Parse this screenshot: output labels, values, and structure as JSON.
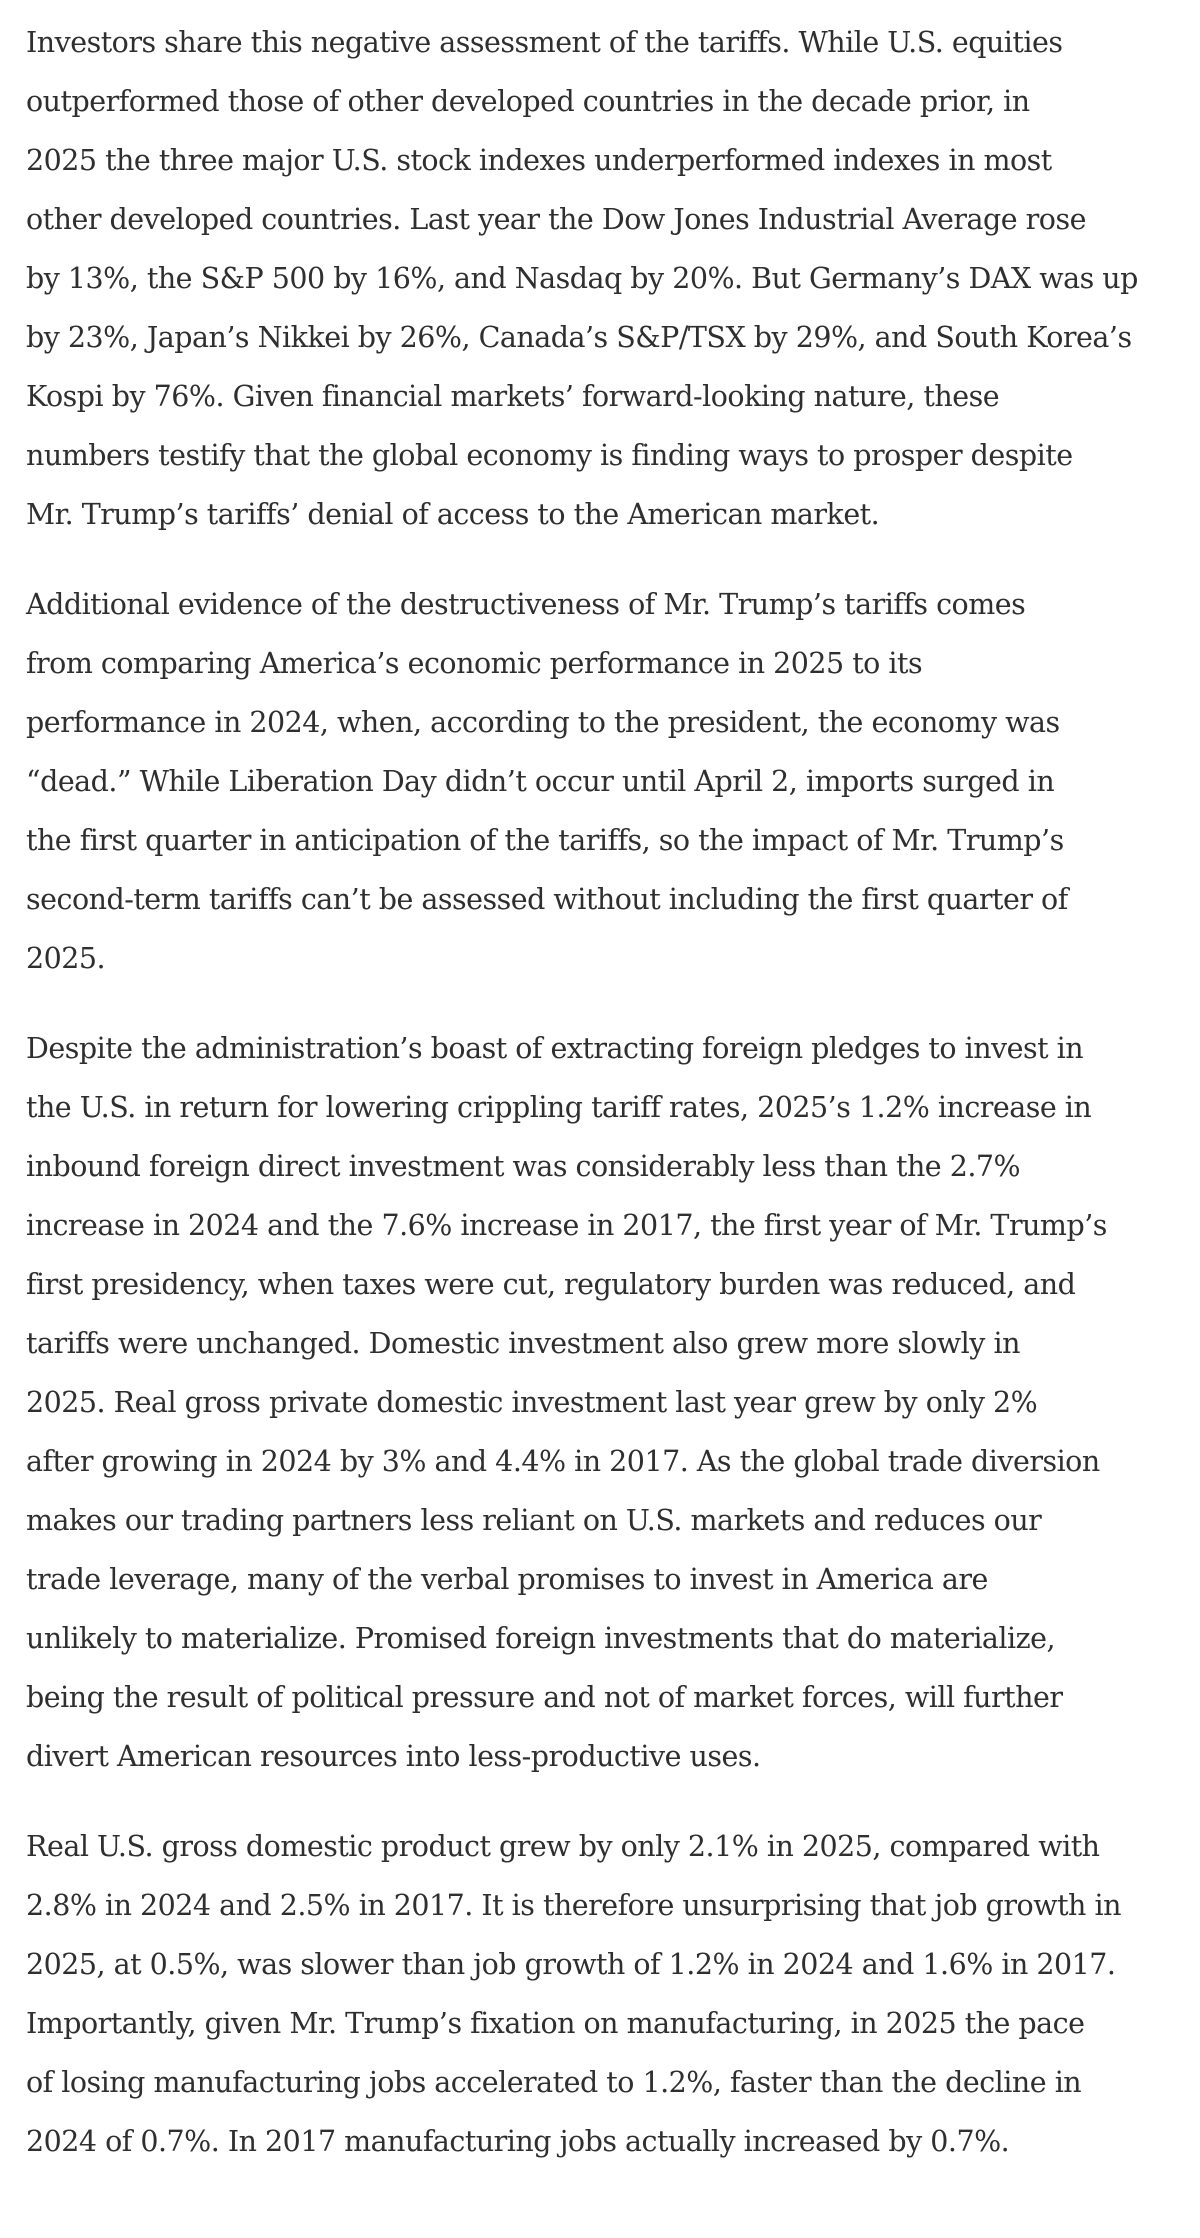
{
  "article": {
    "paragraphs": [
      {
        "lines": [
          "Investors share this negative assessment of the tariffs. While U.S. equities",
          "outperformed those of other developed countries in the decade prior, in",
          "2025 the three major U.S. stock indexes underperformed indexes in most",
          "other developed countries. Last year the Dow Jones Industrial Average rose",
          "by 13%, the S&P 500 by 16%, and Nasdaq by 20%. But Germany’s DAX was up",
          "by 23%, Japan’s Nikkei by 26%, Canada’s S&P/TSX by 29%, and South Korea’s",
          "Kospi by 76%. Given financial markets’ forward-looking nature, these",
          "numbers testify that the global economy is finding ways to prosper despite",
          "Mr. Trump’s tariffs’ denial of access to the American market."
        ]
      },
      {
        "lines": [
          "Additional evidence of the destructiveness of Mr. Trump’s tariffs comes",
          "from comparing America’s economic performance in 2025 to its",
          "performance in 2024, when, according to the president, the economy was",
          "“dead.” While Liberation Day didn’t occur until April 2, imports surged in",
          "the first quarter in anticipation of the tariffs, so the impact of Mr. Trump’s",
          "second-term tariffs can’t be assessed without including the first quarter of",
          "2025."
        ]
      },
      {
        "lines": [
          "Despite the administration’s boast of extracting foreign pledges to invest in",
          "the U.S. in return for lowering crippling tariff rates, 2025’s 1.2% increase in",
          "inbound foreign direct investment was considerably less than the 2.7%",
          "increase in 2024 and the 7.6% increase in 2017, the first year of Mr. Trump’s",
          "first presidency, when taxes were cut, regulatory burden was reduced, and",
          "tariffs were unchanged. Domestic investment also grew more slowly in",
          "2025. Real gross private domestic investment last year grew by only 2%",
          "after growing in 2024 by 3% and 4.4% in 2017. As the global trade diversion",
          "makes our trading partners less reliant on U.S. markets and reduces our",
          "trade leverage, many of the verbal promises to invest in America are",
          "unlikely to materialize. Promised foreign investments that do materialize,",
          "being the result of political pressure and not of market forces, will further",
          "divert American resources into less-productive uses."
        ]
      },
      {
        "lines": [
          "Real U.S. gross domestic product grew by only 2.1% in 2025, compared with",
          "2.8% in 2024 and 2.5% in 2017. It is therefore unsurprising that job growth in",
          "2025, at 0.5%, was slower than job growth of 1.2% in 2024 and 1.6% in 2017.",
          "Importantly, given Mr. Trump’s fixation on manufacturing, in 2025 the pace",
          "of losing manufacturing jobs accelerated to 1.2%, faster than the decline in",
          "2024 of 0.7%. In 2017 manufacturing jobs actually increased by 0.7%."
        ]
      }
    ]
  }
}
